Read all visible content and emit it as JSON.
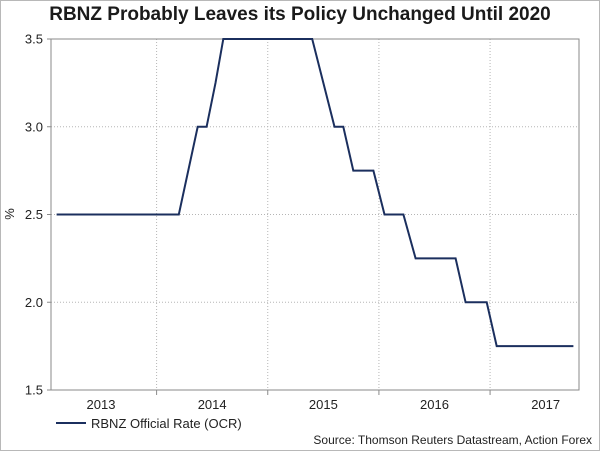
{
  "chart_data": {
    "type": "line",
    "title": "RBNZ Probably Leaves its Policy Unchanged Until 2020",
    "ylabel": "%",
    "xlabel": "",
    "ylim": [
      1.5,
      3.5
    ],
    "yticks": [
      "1.5",
      "2.0",
      "2.5",
      "3.0",
      "3.5"
    ],
    "xlim": [
      2012.55,
      2017.3
    ],
    "xtick_labels": [
      {
        "label": "2013",
        "x": 2013.0
      },
      {
        "label": "2014",
        "x": 2014.0
      },
      {
        "label": "2015",
        "x": 2015.0
      },
      {
        "label": "2016",
        "x": 2016.0
      },
      {
        "label": "2017",
        "x": 2017.0
      }
    ],
    "x_gridlines": [
      2013.5,
      2014.5,
      2015.5,
      2016.5
    ],
    "y_gridlines": [
      2.0,
      2.5,
      3.0
    ],
    "grid": true,
    "line_color": "#1b2f5e",
    "series": [
      {
        "name": "RBNZ Official Rate (OCR)",
        "points": [
          [
            2012.6,
            2.5
          ],
          [
            2013.7,
            2.5
          ],
          [
            2013.87,
            3.0
          ],
          [
            2013.95,
            3.0
          ],
          [
            2014.03,
            3.25
          ],
          [
            2014.1,
            3.5
          ],
          [
            2014.9,
            3.5
          ],
          [
            2015.1,
            3.0
          ],
          [
            2015.18,
            3.0
          ],
          [
            2015.27,
            2.75
          ],
          [
            2015.45,
            2.75
          ],
          [
            2015.55,
            2.5
          ],
          [
            2015.72,
            2.5
          ],
          [
            2015.83,
            2.25
          ],
          [
            2016.19,
            2.25
          ],
          [
            2016.28,
            2.0
          ],
          [
            2016.47,
            2.0
          ],
          [
            2016.56,
            1.75
          ],
          [
            2017.25,
            1.75
          ]
        ]
      }
    ],
    "legend": {
      "position": "bottom-left",
      "label": "RBNZ Official Rate (OCR)"
    },
    "source": "Source: Thomson Reuters Datastream, Action Forex"
  }
}
